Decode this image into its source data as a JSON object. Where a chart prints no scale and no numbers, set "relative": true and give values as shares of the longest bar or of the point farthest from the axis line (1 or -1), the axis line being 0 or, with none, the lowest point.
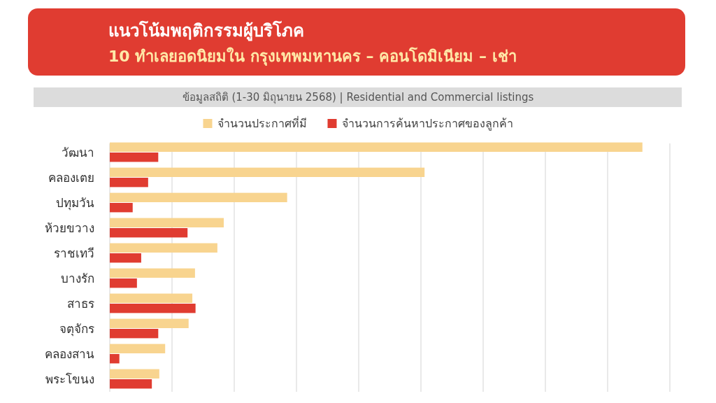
{
  "chart_data": {
    "type": "bar",
    "orientation": "horizontal",
    "relative": true,
    "title": "แนวโน้มพฤติกรรมผู้บริโภค",
    "subtitle": "10 ทำเลยอดนิยมใน กรุงเทพมหานคร – คอนโดมิเนียม – เช่า",
    "annotations": [
      "ข้อมูลสถิติ (1-30 มิถุนายน 2568) | Residential and Commercial listings"
    ],
    "categories": [
      "วัฒนา",
      "คลองเตย",
      "ปทุมวัน",
      "ห้วยขวาง",
      "ราชเทวี",
      "บางรัก",
      "สาธร",
      "จตุจักร",
      "คลองสาน",
      "พระโขนง"
    ],
    "series": [
      {
        "name": "จำนวนประกาศที่มี",
        "color": "#f8d48f",
        "values": [
          1,
          0.591,
          0.333,
          0.214,
          0.202,
          0.16,
          0.155,
          0.148,
          0.104,
          0.093
        ]
      },
      {
        "name": "จำนวนการค้นหาประกาศของลูกค้า",
        "color": "#e03c31",
        "values": [
          0.091,
          0.072,
          0.043,
          0.146,
          0.059,
          0.051,
          0.161,
          0.091,
          0.018,
          0.079
        ]
      }
    ],
    "grid": "x",
    "legend": "top"
  }
}
